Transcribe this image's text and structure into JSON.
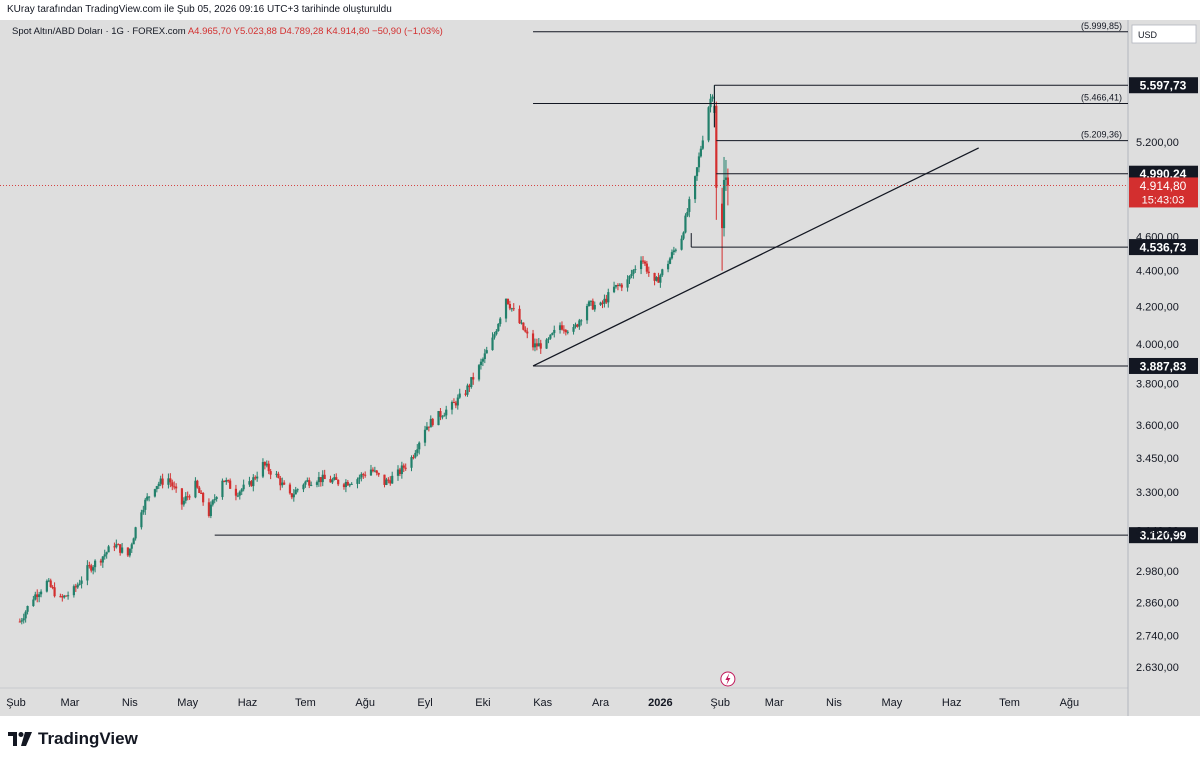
{
  "header": {
    "attribution": "KUray tarafından TradingView.com ile Şub 05, 2026 09:16 UTC+3 tarihinde oluşturuldu"
  },
  "symbol": {
    "name": "Spot Altın/ABD Doları · 1G · FOREX.com",
    "open": "A4.965,70",
    "high": "Y5.023,88",
    "low": "D4.789,28",
    "close": "K4.914,80",
    "change": "−50,90 (−1,03%)"
  },
  "currency": "USD",
  "brand": {
    "name": "TradingView"
  },
  "colors": {
    "up": "#22806b",
    "down": "#d32f2f",
    "background": "#dedede",
    "line": "#131722",
    "label_bg": "#131722"
  },
  "chart_data": {
    "type": "candlestick",
    "instrument": "Spot Altın/ABD Doları",
    "interval": "1G",
    "y_axis": {
      "ticks": [
        "5.200,00",
        "4.600,00",
        "4.400,00",
        "4.200,00",
        "4.000,00",
        "3.800,00",
        "3.600,00",
        "3.450,00",
        "3.300,00",
        "3.140,00",
        "2.980,00",
        "2.860,00",
        "2.740,00",
        "2.630,00"
      ],
      "tick_values": [
        5200,
        4600,
        4400,
        4200,
        4000,
        3800,
        3600,
        3450,
        3300,
        3140,
        2980,
        2860,
        2740,
        2630
      ],
      "scale": "log"
    },
    "x_axis": {
      "ticks": [
        "Şub",
        "Mar",
        "Nis",
        "May",
        "Haz",
        "Tem",
        "Ağu",
        "Eyl",
        "Eki",
        "Kas",
        "Ara",
        "2026",
        "Şub",
        "Mar",
        "Nis",
        "May",
        "Haz",
        "Tem",
        "Ağu"
      ],
      "tick_dates": [
        "2025-02-01",
        "2025-03-01",
        "2025-04-01",
        "2025-05-01",
        "2025-06-01",
        "2025-07-01",
        "2025-08-01",
        "2025-09-01",
        "2025-10-01",
        "2025-11-01",
        "2025-12-01",
        "2026-01-01",
        "2026-02-01",
        "2026-03-01",
        "2026-04-01",
        "2026-05-01",
        "2026-06-01",
        "2026-07-01",
        "2026-08-01"
      ]
    },
    "price_series": [
      [
        "2025-02-03",
        2790
      ],
      [
        "2025-02-10",
        2880
      ],
      [
        "2025-02-17",
        2935
      ],
      [
        "2025-02-24",
        2870
      ],
      [
        "2025-03-03",
        2905
      ],
      [
        "2025-03-10",
        2985
      ],
      [
        "2025-03-17",
        3030
      ],
      [
        "2025-03-24",
        3085
      ],
      [
        "2025-03-31",
        3040
      ],
      [
        "2025-04-07",
        3230
      ],
      [
        "2025-04-14",
        3330
      ],
      [
        "2025-04-21",
        3360
      ],
      [
        "2025-04-28",
        3250
      ],
      [
        "2025-05-05",
        3330
      ],
      [
        "2025-05-12",
        3210
      ],
      [
        "2025-05-19",
        3360
      ],
      [
        "2025-05-26",
        3300
      ],
      [
        "2025-06-02",
        3330
      ],
      [
        "2025-06-09",
        3420
      ],
      [
        "2025-06-16",
        3370
      ],
      [
        "2025-06-23",
        3280
      ],
      [
        "2025-06-30",
        3340
      ],
      [
        "2025-07-07",
        3360
      ],
      [
        "2025-07-14",
        3350
      ],
      [
        "2025-07-21",
        3340
      ],
      [
        "2025-07-28",
        3360
      ],
      [
        "2025-08-04",
        3400
      ],
      [
        "2025-08-11",
        3340
      ],
      [
        "2025-08-18",
        3380
      ],
      [
        "2025-08-25",
        3450
      ],
      [
        "2025-09-01",
        3590
      ],
      [
        "2025-09-08",
        3645
      ],
      [
        "2025-09-15",
        3690
      ],
      [
        "2025-09-22",
        3760
      ],
      [
        "2025-09-29",
        3880
      ],
      [
        "2025-10-06",
        4020
      ],
      [
        "2025-10-13",
        4250
      ],
      [
        "2025-10-20",
        4110
      ],
      [
        "2025-10-27",
        3990
      ],
      [
        "2025-11-03",
        4000
      ],
      [
        "2025-11-10",
        4100
      ],
      [
        "2025-11-17",
        4070
      ],
      [
        "2025-11-24",
        4210
      ],
      [
        "2025-12-01",
        4200
      ],
      [
        "2025-12-08",
        4300
      ],
      [
        "2025-12-15",
        4340
      ],
      [
        "2025-12-22",
        4480
      ],
      [
        "2025-12-29",
        4320
      ],
      [
        "2026-01-05",
        4450
      ],
      [
        "2026-01-12",
        4600
      ],
      [
        "2026-01-19",
        4950
      ],
      [
        "2026-01-26",
        5450
      ],
      [
        "2026-01-29",
        5597.73
      ],
      [
        "2026-02-02",
        4500
      ],
      [
        "2026-02-03",
        4950
      ],
      [
        "2026-02-04",
        4965.7
      ],
      [
        "2026-02-05",
        4914.8
      ]
    ],
    "high_point": {
      "date": "2026-01-29",
      "value": 5597.73
    },
    "low_point": {
      "date": "2026-02-02",
      "value": 4400
    },
    "horizontal_levels": [
      {
        "label": "(5.999,85)",
        "value": 5999.85,
        "start": "2025-10-27",
        "boxed": false
      },
      {
        "label": "5.597,73",
        "value": 5597.73,
        "start": "2026-01-29",
        "boxed": true
      },
      {
        "label": "(5.466,41)",
        "value": 5466.41,
        "start": "2025-10-27",
        "boxed": false
      },
      {
        "label": "(5.209,36)",
        "value": 5209.36,
        "start": "2026-01-30",
        "boxed": false
      },
      {
        "label": "4.990,24",
        "value": 4990.24,
        "start": "2026-01-30",
        "boxed": true
      },
      {
        "label": "4.536,73",
        "value": 4536.73,
        "start": "2026-01-17",
        "boxed": true
      },
      {
        "label": "3.887,83",
        "value": 3887.83,
        "start": "2025-10-27",
        "boxed": true
      },
      {
        "label": "3.120,99",
        "value": 3120.99,
        "start": "2025-05-15",
        "boxed": true
      }
    ],
    "trendline": {
      "from": [
        "2025-10-27",
        3887.83
      ],
      "to": [
        "2026-06-15",
        5160
      ]
    },
    "last_price": {
      "label": "4.914,80",
      "value": 4914.8,
      "countdown": "15:43:03"
    }
  }
}
